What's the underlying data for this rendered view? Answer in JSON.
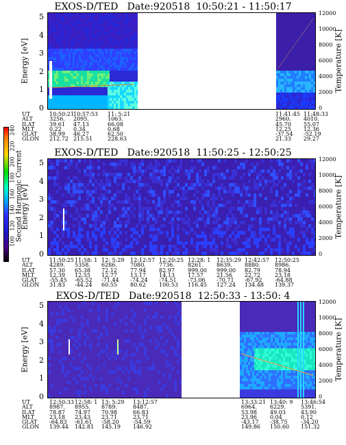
{
  "colorbar": {
    "label": "Second Harmonic Current",
    "ticks": [
      "240",
      "220",
      "200",
      "180",
      "160",
      "140",
      "120",
      "100"
    ],
    "colors": [
      "#ff0000",
      "#ff7f00",
      "#ffd700",
      "#00dd00",
      "#00ffcc",
      "#00aaff",
      "#3333ff",
      "#1a1acc",
      "#4b0082",
      "#000000"
    ]
  },
  "chart_data": [
    {
      "type": "heatmap",
      "title": "EXOS-D/TED   Date:920518  10:50:21 - 11:50:17",
      "ylabel": "Energy [eV]",
      "y2label": "Temperature [K]",
      "yticks": [
        "0",
        "1",
        "2",
        "3",
        "4",
        "5"
      ],
      "y2ticks": [
        "0",
        "2000",
        "4000",
        "6000",
        "8000",
        "10000",
        "12000"
      ],
      "ylim": [
        0,
        5.2
      ],
      "y2lim": [
        0,
        12000
      ],
      "orbit_labels": [
        "UT",
        "ALT",
        "ILAT",
        "MLT",
        "GLAT",
        "GLON"
      ],
      "orbit_columns": [
        [
          "10:50:21",
          "3256.",
          "39.61",
          "0.22",
          "38.99",
          "212.72"
        ],
        [
          "10:57:53",
          "2095.",
          "47.13",
          "0.34",
          "46.27",
          "215.51"
        ],
        [
          "11: 5:21",
          "1063.",
          "66.08",
          "0.68",
          "62.50",
          "228.63"
        ],
        [
          "11:41:45",
          "2960.",
          "45.70",
          "12.25",
          "-37.54",
          "21.33"
        ],
        [
          "11:48:33",
          "4010.",
          "55.07",
          "12.36",
          "-52.19",
          "29.27"
        ]
      ],
      "data_gap": [
        "11:13",
        "11:40"
      ]
    },
    {
      "type": "heatmap",
      "title": "EXOS-D/TED   Date:920518  11:50:25 - 12:50:25",
      "ylabel": "Energy [eV]",
      "y2label": "Temperature [K]",
      "yticks": [
        "0",
        "1",
        "2",
        "3",
        "4",
        "5"
      ],
      "y2ticks": [
        "0",
        "2000",
        "4000",
        "6000",
        "8000",
        "10000",
        "12000"
      ],
      "ylim": [
        0,
        5.2
      ],
      "y2lim": [
        0,
        12000
      ],
      "orbit_labels": [
        "UT",
        "ALT",
        "ILAT",
        "MLT",
        "GLAT",
        "GLON"
      ],
      "orbit_columns": [
        [
          "11:50:25",
          "4289.",
          "57.30",
          "12.39",
          "-55.45",
          "31.83"
        ],
        [
          "11:58: 1",
          "5358.",
          "65.38",
          "12.55",
          "-65.52",
          "-44.24"
        ],
        [
          "12: 5:29",
          "6286.",
          "72.12",
          "12.77",
          "-71.44",
          "60.55"
        ],
        [
          "12:12:57",
          "7080.",
          "77.94",
          "13.17",
          "-74.24",
          "80.62"
        ],
        [
          "12:20:25",
          "7736.",
          "82.97",
          "14.13",
          "-74.51",
          "100.53"
        ],
        [
          "12:28: 1",
          "8261.",
          "999.00",
          "17.57",
          "-73.06",
          "116.45"
        ],
        [
          "12:35:29",
          "8639.",
          "999.00",
          "21.56",
          "-70.71",
          "127.24"
        ],
        [
          "12:42:57",
          "8880.",
          "82.79",
          "22.72",
          "-67.92",
          "134.48"
        ],
        [
          "12:50:25",
          "8986.",
          "78.94",
          "23.18",
          "-64.88",
          "139.37"
        ]
      ]
    },
    {
      "type": "heatmap",
      "title": "EXOS-D/TED   Date:920518  12:50:33 - 13:50: 4",
      "ylabel": "Energy [eV]",
      "y2label": "Temperature [K]",
      "yticks": [
        "0",
        "1",
        "2",
        "3",
        "4",
        "5"
      ],
      "y2ticks": [
        "0",
        "2000",
        "4000",
        "6000",
        "8000",
        "10000",
        "12000"
      ],
      "ylim": [
        0,
        5.2
      ],
      "y2lim": [
        0,
        12000
      ],
      "orbit_labels": [
        "UT",
        "ALT",
        "ILAT",
        "MLT",
        "GLAT",
        "GLON"
      ],
      "orbit_columns": [
        [
          "12:50:33",
          "8987.",
          "78.87",
          "23.18",
          "-64.83",
          "139.44"
        ],
        [
          "12:58: 1",
          "8955.",
          "74.97",
          "23.43",
          "-61.61",
          "142.81"
        ],
        [
          "13: 5:29",
          "8789.",
          "70.98",
          "23.71",
          "-58.20",
          "145.19"
        ],
        [
          "13:12:57",
          "8487.",
          "66.83",
          "23.71",
          "-54.59",
          "146.92"
        ],
        [
          "13:33:21",
          "6964.",
          "53.98",
          "23.96",
          "-43.17",
          "149.86"
        ],
        [
          "13:40: 9",
          "6229.",
          "49.03",
          "0.04",
          "-38.75",
          "150.60"
        ],
        [
          "13:46:54",
          "5391.",
          "43.90",
          "0.12",
          "-34.20",
          "151.32"
        ]
      ],
      "data_gap": [
        "13:18",
        "13:29"
      ]
    }
  ]
}
